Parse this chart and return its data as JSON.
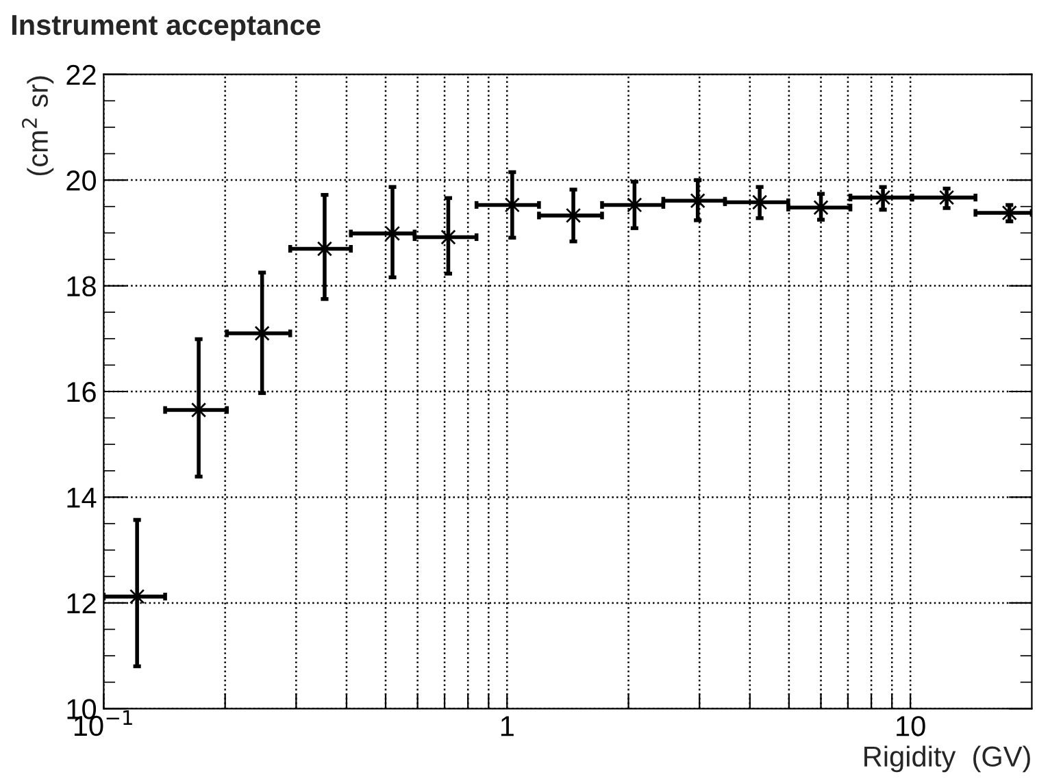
{
  "chart_data": {
    "type": "scatter",
    "title": "Instrument acceptance",
    "xlabel": "Rigidity  (GV)",
    "ylabel": "(cm$^{2}$ sr)",
    "log": "x",
    "grid": true,
    "marker": "cross",
    "line_style": "none",
    "xlim": [
      0.1,
      20
    ],
    "ylim": [
      10,
      22
    ],
    "xticks": [
      {
        "value": 0.1,
        "label": "10$^{−1}$"
      },
      {
        "value": 0.2,
        "label": null
      },
      {
        "value": 0.3,
        "label": null
      },
      {
        "value": 0.4,
        "label": null
      },
      {
        "value": 0.5,
        "label": null
      },
      {
        "value": 0.6,
        "label": null
      },
      {
        "value": 0.7,
        "label": null
      },
      {
        "value": 0.8,
        "label": null
      },
      {
        "value": 0.9,
        "label": null
      },
      1,
      {
        "value": 2,
        "label": null
      },
      {
        "value": 3,
        "label": null
      },
      {
        "value": 4,
        "label": null
      },
      {
        "value": 5,
        "label": null
      },
      {
        "value": 6,
        "label": null
      },
      {
        "value": 7,
        "label": null
      },
      {
        "value": 8,
        "label": null
      },
      {
        "value": 9,
        "label": null
      },
      10
    ],
    "yticks": [
      10,
      12,
      14,
      16,
      18,
      20,
      22
    ],
    "x": [
      0.121,
      0.172,
      0.247,
      0.353,
      0.52,
      0.715,
      1.03,
      1.46,
      2.07,
      2.97,
      4.23,
      6.0,
      8.55,
      12.3,
      17.6
    ],
    "series": [
      {
        "color": "#000000",
        "values": [
          12.12,
          15.65,
          17.1,
          18.7,
          18.99,
          18.92,
          19.53,
          19.33,
          19.53,
          19.61,
          19.58,
          19.48,
          19.67,
          19.67,
          19.38
        ],
        "errors": [
          [
            10.8,
            13.57
          ],
          [
            14.39,
            16.99
          ],
          [
            15.97,
            18.25
          ],
          [
            17.75,
            19.72
          ],
          [
            18.16,
            19.87
          ],
          [
            18.23,
            19.66
          ],
          [
            18.91,
            20.15
          ],
          [
            18.84,
            19.82
          ],
          [
            19.09,
            19.97
          ],
          [
            19.24,
            20.0
          ],
          [
            19.28,
            19.87
          ],
          [
            19.25,
            19.74
          ],
          [
            19.44,
            19.87
          ],
          [
            19.47,
            19.84
          ],
          [
            19.22,
            19.53
          ]
        ],
        "xerrors": [
          [
            0.1,
            0.142
          ],
          [
            0.142,
            0.202
          ],
          [
            0.202,
            0.29
          ],
          [
            0.29,
            0.41
          ],
          [
            0.41,
            0.59
          ],
          [
            0.59,
            0.84
          ],
          [
            0.84,
            1.2
          ],
          [
            1.2,
            1.72
          ],
          [
            1.72,
            2.44
          ],
          [
            2.44,
            3.47
          ],
          [
            3.47,
            4.98
          ],
          [
            4.98,
            7.1
          ],
          [
            7.1,
            10.1
          ],
          [
            10.1,
            14.5
          ],
          [
            14.5,
            20
          ]
        ]
      }
    ]
  }
}
